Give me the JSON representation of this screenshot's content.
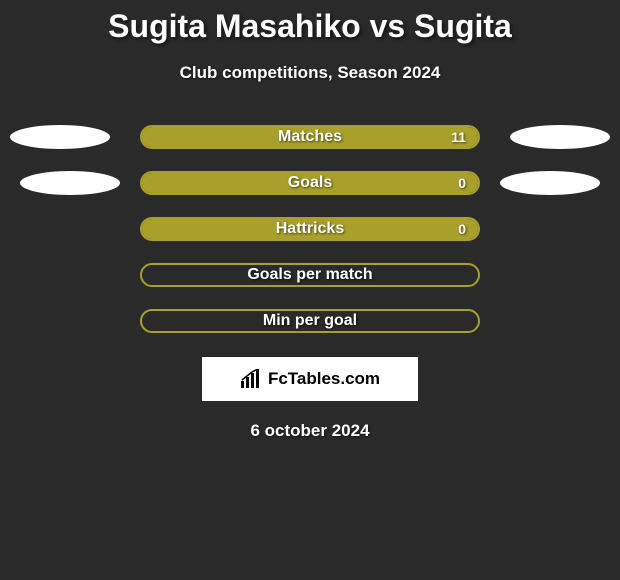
{
  "accent_color": "#a8a02a",
  "background_color": "#2a2a2a",
  "title": "Sugita Masahiko vs Sugita",
  "subtitle": "Club competitions, Season 2024",
  "rows": [
    {
      "label": "Matches",
      "value": "11",
      "fill_pct": 100,
      "show_value": true,
      "side_match": true,
      "side_goals": false
    },
    {
      "label": "Goals",
      "value": "0",
      "fill_pct": 100,
      "show_value": true,
      "side_match": false,
      "side_goals": true
    },
    {
      "label": "Hattricks",
      "value": "0",
      "fill_pct": 100,
      "show_value": true,
      "side_match": false,
      "side_goals": false
    },
    {
      "label": "Goals per match",
      "value": "",
      "fill_pct": 0,
      "show_value": false,
      "side_match": false,
      "side_goals": false
    },
    {
      "label": "Min per goal",
      "value": "",
      "fill_pct": 0,
      "show_value": false,
      "side_match": false,
      "side_goals": false
    }
  ],
  "brand": "FcTables.com",
  "date": "6 october 2024"
}
